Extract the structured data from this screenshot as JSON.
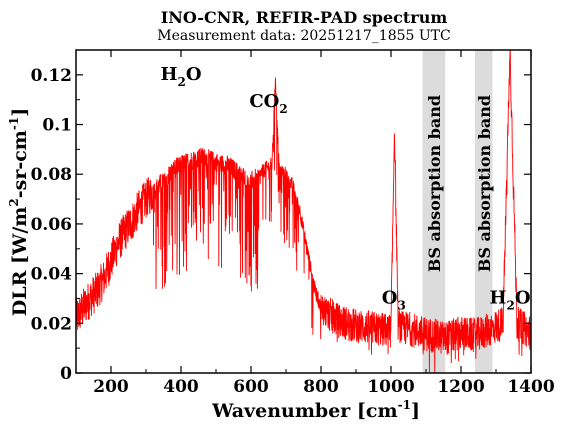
{
  "chart_data": {
    "type": "line",
    "title": "INO-CNR, REFIR-PAD spectrum",
    "subtitle": "Measurement data: 20251217_1855 UTC",
    "xlabel": {
      "main": "Wavenumber [cm",
      "sup": "-1",
      "close": "]"
    },
    "ylabel": {
      "main": "DLR [W/m",
      "sup1": "2",
      "mid": "-sr-cm",
      "sup2": "-1",
      "close": "]"
    },
    "xlim": [
      100,
      1400
    ],
    "ylim": [
      0,
      0.13
    ],
    "xticks": [
      200,
      400,
      600,
      800,
      1000,
      1200,
      1400
    ],
    "xtick_labels": [
      "200",
      "400",
      "600",
      "800",
      "1000",
      "1200",
      "1400"
    ],
    "yticks": [
      0,
      0.02,
      0.04,
      0.06,
      0.08,
      0.1,
      0.12
    ],
    "ytick_labels": [
      "0",
      "0.02",
      "0.04",
      "0.06",
      "0.08",
      "0.1",
      "0.12"
    ],
    "grid": false,
    "series_color": "#ff0000",
    "band_color": "#dcdcdc",
    "bands": [
      {
        "x0": 1090,
        "x1": 1155,
        "label": "BS absorption band"
      },
      {
        "x0": 1240,
        "x1": 1290,
        "label": "BS absorption band"
      }
    ],
    "annotations": [
      {
        "main": "H",
        "sub": "2",
        "rest": "O",
        "x": 400,
        "y": 0.118
      },
      {
        "main": "CO",
        "sub": "2",
        "rest": "",
        "x": 650,
        "y": 0.107
      },
      {
        "main": "O",
        "sub": "3",
        "rest": "",
        "x": 1008,
        "y": 0.028
      },
      {
        "main": "H",
        "sub": "2",
        "rest": "O",
        "x": 1340,
        "y": 0.028
      }
    ],
    "series": [
      {
        "x": [
          100,
          120,
          140,
          160,
          180,
          200,
          220,
          240,
          260,
          280,
          300,
          320,
          340,
          360,
          380,
          400,
          420,
          440,
          460,
          480,
          500,
          520,
          540,
          560,
          580,
          600,
          620,
          640,
          660,
          670,
          680,
          700,
          720,
          740,
          760,
          780,
          800,
          850,
          900,
          950,
          1000,
          1010,
          1020,
          1030,
          1050,
          1090,
          1155,
          1200,
          1240,
          1290,
          1320,
          1340,
          1360,
          1380,
          1400
        ],
        "y": [
          0.022,
          0.026,
          0.03,
          0.033,
          0.038,
          0.045,
          0.052,
          0.057,
          0.061,
          0.066,
          0.07,
          0.073,
          0.076,
          0.079,
          0.082,
          0.084,
          0.085,
          0.086,
          0.087,
          0.086,
          0.085,
          0.084,
          0.083,
          0.081,
          0.079,
          0.077,
          0.079,
          0.082,
          0.084,
          0.12,
          0.082,
          0.08,
          0.075,
          0.065,
          0.05,
          0.035,
          0.026,
          0.021,
          0.019,
          0.018,
          0.017,
          0.1,
          0.02,
          0.018,
          0.018,
          0.016,
          0.014,
          0.016,
          0.015,
          0.018,
          0.02,
          0.13,
          0.02,
          0.018,
          0.016
        ]
      }
    ]
  }
}
